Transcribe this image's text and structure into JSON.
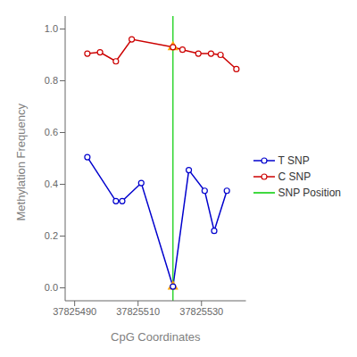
{
  "chart_data": {
    "type": "line",
    "xlabel": "CpG Coordinates",
    "ylabel": "Methylation Frequency",
    "xlim": [
      37825487,
      37825544
    ],
    "ylim": [
      -0.05,
      1.05
    ],
    "xticks": [
      37825490,
      37825510,
      37825530
    ],
    "yticks": [
      {
        "value": 0.0,
        "label": "0.0"
      },
      0.2,
      0.4,
      0.6,
      0.8,
      {
        "value": 1.0,
        "label": "1.0"
      }
    ],
    "grid": false,
    "legend": "right",
    "series": [
      {
        "name": "T SNP",
        "type": "line",
        "color": "#0000CD",
        "marker": "circle",
        "x": [
          37825494,
          37825503,
          37825505,
          37825511,
          37825521,
          37825526,
          37825531,
          37825534,
          37825538
        ],
        "values": [
          0.505,
          0.335,
          0.335,
          0.405,
          0.005,
          0.455,
          0.375,
          0.22,
          0.375
        ]
      },
      {
        "name": "C SNP",
        "type": "line",
        "color": "#CC0000",
        "marker": "circle",
        "x": [
          37825494,
          37825498,
          37825503,
          37825508,
          37825521,
          37825524,
          37825529,
          37825533,
          37825536,
          37825541
        ],
        "values": [
          0.905,
          0.91,
          0.875,
          0.96,
          0.93,
          0.92,
          0.905,
          0.905,
          0.9,
          0.845
        ]
      },
      {
        "name": "SNP Position",
        "type": "vline",
        "color": "#00CC00",
        "x": [
          37825521
        ]
      },
      {
        "type": "scatter",
        "marker": "triangle",
        "color": "#FFA500",
        "x": [
          37825521,
          37825521
        ],
        "values": [
          0.005,
          0.93
        ]
      }
    ]
  }
}
